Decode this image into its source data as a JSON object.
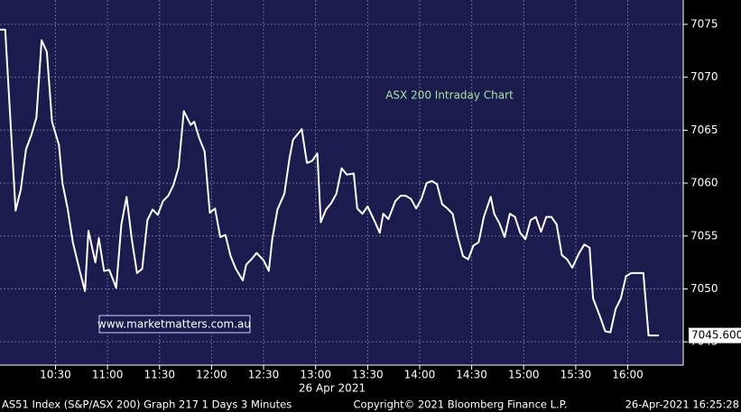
{
  "chart_data": {
    "type": "line",
    "title": "ASX 200 Intraday Chart",
    "x_label": "26 Apr 2021",
    "x": [
      598,
      601,
      607,
      610,
      613,
      616,
      619,
      622,
      625,
      628,
      632,
      634,
      637,
      640,
      644,
      647,
      649,
      653,
      655,
      658,
      661,
      665,
      668,
      671,
      674,
      677,
      680,
      683,
      686,
      689,
      692,
      695,
      698,
      701,
      704,
      708,
      710,
      713,
      716,
      719,
      722,
      725,
      728,
      731,
      734,
      738,
      740,
      743,
      746,
      750,
      753,
      755,
      758,
      762,
      765,
      767,
      772,
      775,
      778,
      781,
      783,
      786,
      789,
      792,
      795,
      798,
      802,
      804,
      807,
      810,
      814,
      817,
      819,
      822,
      826,
      829,
      832,
      835,
      838,
      841,
      844,
      847,
      850,
      853,
      856,
      859,
      862,
      865,
      868,
      871,
      874,
      877,
      881,
      883,
      886,
      889,
      892,
      895,
      898,
      901,
      904,
      907,
      910,
      913,
      916,
      919,
      922,
      925,
      928,
      932,
      935,
      938,
      940,
      944,
      947,
      950,
      953,
      956,
      959,
      962,
      965,
      969,
      972,
      978
    ],
    "values": [
      7074.5,
      7074.5,
      7057.4,
      7059.4,
      7063.2,
      7064.5,
      7066.2,
      7073.5,
      7072.4,
      7065.8,
      7063.6,
      7060,
      7057.6,
      7054.4,
      7051.7,
      7049.8,
      7055.5,
      7052.5,
      7054.8,
      7051.7,
      7051.8,
      7050.1,
      7056.1,
      7058.7,
      7054.7,
      7051.5,
      7051.9,
      7056.5,
      7057.5,
      7057,
      7058.3,
      7058.8,
      7059.8,
      7061.5,
      7066.8,
      7065.5,
      7065.8,
      7064.2,
      7063,
      7057.2,
      7057.6,
      7054.9,
      7055.1,
      7053.1,
      7051.9,
      7050.8,
      7052.3,
      7052.8,
      7053.4,
      7052.7,
      7051.7,
      7054.7,
      7057.5,
      7059,
      7062.4,
      7064.1,
      7065.1,
      7061.9,
      7062.1,
      7062.8,
      7056.3,
      7057.5,
      7058.1,
      7059,
      7061.4,
      7060.8,
      7060.9,
      7057.6,
      7057.1,
      7057.8,
      7056.4,
      7055.3,
      7057.1,
      7056.6,
      7058.3,
      7058.8,
      7058.8,
      7058.5,
      7057.6,
      7058.5,
      7060,
      7060.2,
      7059.9,
      7058,
      7057.6,
      7057.1,
      7054.9,
      7053.1,
      7052.8,
      7054.1,
      7054.4,
      7056.8,
      7058.7,
      7057.1,
      7056.2,
      7054.9,
      7057.1,
      7056.8,
      7055.3,
      7054.7,
      7056.5,
      7056.8,
      7055.4,
      7056.8,
      7056.8,
      7056.1,
      7053.2,
      7052.8,
      7052,
      7053.4,
      7054.2,
      7053.9,
      7049.1,
      7047.4,
      7046,
      7045.9,
      7048.1,
      7049.1,
      7051.2,
      7051.5,
      7051.5,
      7051.5,
      7045.6,
      7045.6
    ],
    "color": "#ffffff",
    "xlim": [
      598,
      992
    ],
    "xticks": [
      {
        "value": 630,
        "label": "10:30"
      },
      {
        "value": 660,
        "label": "11:00"
      },
      {
        "value": 690,
        "label": "11:30"
      },
      {
        "value": 720,
        "label": "12:00"
      },
      {
        "value": 750,
        "label": "12:30"
      },
      {
        "value": 780,
        "label": "13:00"
      },
      {
        "value": 810,
        "label": "13:30"
      },
      {
        "value": 840,
        "label": "14:00"
      },
      {
        "value": 870,
        "label": "14:30"
      },
      {
        "value": 900,
        "label": "15:00"
      },
      {
        "value": 930,
        "label": "15:30"
      },
      {
        "value": 960,
        "label": "16:00"
      }
    ],
    "ylim": [
      7042.8,
      7077.3
    ],
    "yticks": [
      7045,
      7050,
      7055,
      7060,
      7065,
      7070,
      7075
    ],
    "grid": true,
    "last_value": {
      "value": 7045.6,
      "label": "7045.600"
    }
  },
  "watermark": "www.marketmatters.com.au",
  "footer": {
    "left": "AS51 Index (S&P/ASX 200) Graph 217 1 Days 3 Minutes",
    "center": "Copyright© 2021 Bloomberg Finance L.P.",
    "right": "26-Apr-2021 16:25:28"
  }
}
